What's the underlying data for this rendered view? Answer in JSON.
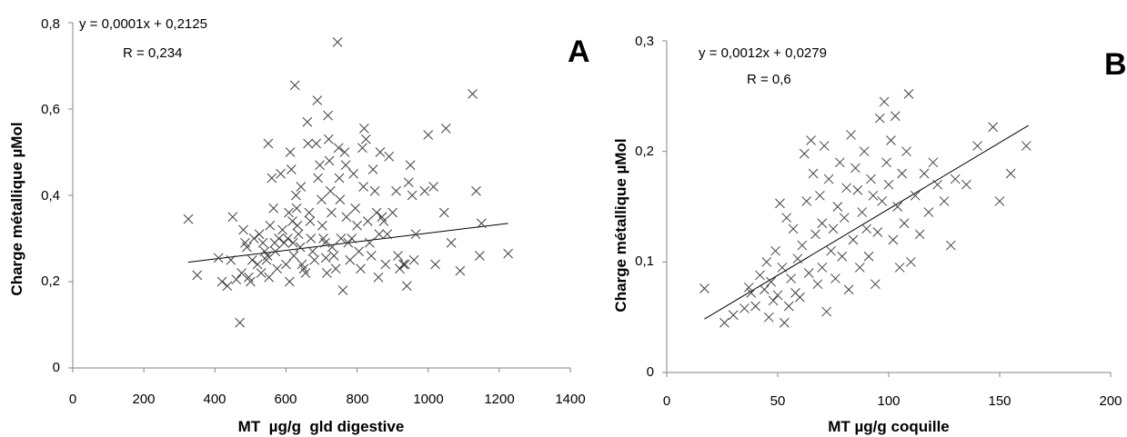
{
  "chart_data": [
    {
      "type": "scatter",
      "panel_label": "A",
      "xlabel": "MT  µg/g  gld digestive",
      "ylabel": "Charge métallique µMol",
      "xlim": [
        0,
        1400
      ],
      "ylim": [
        0,
        0.8
      ],
      "x_ticks": [
        0,
        200,
        400,
        600,
        800,
        1000,
        1200,
        1400
      ],
      "x_tick_labels": [
        "0",
        "200",
        "400",
        "600",
        "800",
        "1000",
        "1200",
        "1400"
      ],
      "y_ticks": [
        0,
        0.2,
        0.4,
        0.6,
        0.8
      ],
      "y_tick_labels": [
        "0",
        "0,2",
        "0,4",
        "0,6",
        "0,8"
      ],
      "grid": false,
      "marker": "x",
      "trendline": {
        "slope": 0.0001,
        "intercept": 0.2125,
        "x_range": [
          325,
          1225
        ]
      },
      "annotations": [
        "y = 0,0001x + 0,2125",
        "R = 0,234"
      ],
      "points": [
        [
          325,
          0.345
        ],
        [
          350,
          0.215
        ],
        [
          410,
          0.255
        ],
        [
          420,
          0.2
        ],
        [
          435,
          0.19
        ],
        [
          445,
          0.25
        ],
        [
          450,
          0.35
        ],
        [
          460,
          0.205
        ],
        [
          470,
          0.105
        ],
        [
          475,
          0.22
        ],
        [
          480,
          0.32
        ],
        [
          485,
          0.29
        ],
        [
          490,
          0.28
        ],
        [
          495,
          0.21
        ],
        [
          500,
          0.2
        ],
        [
          505,
          0.25
        ],
        [
          510,
          0.3
        ],
        [
          520,
          0.24
        ],
        [
          525,
          0.31
        ],
        [
          530,
          0.22
        ],
        [
          535,
          0.29
        ],
        [
          540,
          0.27
        ],
        [
          545,
          0.25
        ],
        [
          548,
          0.26
        ],
        [
          550,
          0.52
        ],
        [
          552,
          0.21
        ],
        [
          555,
          0.33
        ],
        [
          560,
          0.44
        ],
        [
          565,
          0.37
        ],
        [
          568,
          0.29
        ],
        [
          570,
          0.27
        ],
        [
          575,
          0.23
        ],
        [
          580,
          0.3
        ],
        [
          585,
          0.45
        ],
        [
          590,
          0.32
        ],
        [
          595,
          0.29
        ],
        [
          600,
          0.24
        ],
        [
          605,
          0.3
        ],
        [
          608,
          0.36
        ],
        [
          610,
          0.2
        ],
        [
          612,
          0.5
        ],
        [
          615,
          0.46
        ],
        [
          618,
          0.34
        ],
        [
          620,
          0.29
        ],
        [
          622,
          0.26
        ],
        [
          625,
          0.655
        ],
        [
          628,
          0.4
        ],
        [
          630,
          0.37
        ],
        [
          632,
          0.33
        ],
        [
          635,
          0.31
        ],
        [
          640,
          0.28
        ],
        [
          642,
          0.42
        ],
        [
          645,
          0.24
        ],
        [
          650,
          0.23
        ],
        [
          655,
          0.22
        ],
        [
          660,
          0.57
        ],
        [
          662,
          0.52
        ],
        [
          665,
          0.36
        ],
        [
          668,
          0.34
        ],
        [
          670,
          0.3
        ],
        [
          675,
          0.27
        ],
        [
          680,
          0.25
        ],
        [
          685,
          0.52
        ],
        [
          688,
          0.62
        ],
        [
          690,
          0.44
        ],
        [
          695,
          0.47
        ],
        [
          700,
          0.39
        ],
        [
          702,
          0.33
        ],
        [
          705,
          0.3
        ],
        [
          710,
          0.29
        ],
        [
          712,
          0.255
        ],
        [
          715,
          0.22
        ],
        [
          718,
          0.585
        ],
        [
          720,
          0.53
        ],
        [
          722,
          0.48
        ],
        [
          725,
          0.41
        ],
        [
          728,
          0.36
        ],
        [
          730,
          0.28
        ],
        [
          735,
          0.26
        ],
        [
          740,
          0.23
        ],
        [
          745,
          0.755
        ],
        [
          748,
          0.51
        ],
        [
          750,
          0.44
        ],
        [
          752,
          0.39
        ],
        [
          755,
          0.3
        ],
        [
          760,
          0.18
        ],
        [
          765,
          0.5
        ],
        [
          768,
          0.47
        ],
        [
          770,
          0.35
        ],
        [
          775,
          0.29
        ],
        [
          780,
          0.25
        ],
        [
          785,
          0.3
        ],
        [
          790,
          0.45
        ],
        [
          795,
          0.37
        ],
        [
          800,
          0.33
        ],
        [
          805,
          0.27
        ],
        [
          810,
          0.23
        ],
        [
          815,
          0.51
        ],
        [
          818,
          0.42
        ],
        [
          820,
          0.555
        ],
        [
          825,
          0.53
        ],
        [
          830,
          0.34
        ],
        [
          835,
          0.29
        ],
        [
          840,
          0.26
        ],
        [
          845,
          0.46
        ],
        [
          850,
          0.41
        ],
        [
          855,
          0.36
        ],
        [
          860,
          0.21
        ],
        [
          862,
          0.31
        ],
        [
          865,
          0.5
        ],
        [
          870,
          0.35
        ],
        [
          875,
          0.34
        ],
        [
          880,
          0.24
        ],
        [
          885,
          0.31
        ],
        [
          890,
          0.49
        ],
        [
          900,
          0.36
        ],
        [
          910,
          0.41
        ],
        [
          915,
          0.26
        ],
        [
          920,
          0.23
        ],
        [
          930,
          0.24
        ],
        [
          935,
          0.24
        ],
        [
          940,
          0.19
        ],
        [
          945,
          0.43
        ],
        [
          950,
          0.47
        ],
        [
          955,
          0.4
        ],
        [
          960,
          0.25
        ],
        [
          965,
          0.31
        ],
        [
          990,
          0.41
        ],
        [
          1000,
          0.54
        ],
        [
          1015,
          0.42
        ],
        [
          1020,
          0.24
        ],
        [
          1045,
          0.36
        ],
        [
          1050,
          0.555
        ],
        [
          1065,
          0.29
        ],
        [
          1090,
          0.225
        ],
        [
          1125,
          0.635
        ],
        [
          1135,
          0.41
        ],
        [
          1145,
          0.26
        ],
        [
          1150,
          0.335
        ],
        [
          1225,
          0.265
        ]
      ]
    },
    {
      "type": "scatter",
      "panel_label": "B",
      "xlabel": "MT µg/g coquille",
      "ylabel": "Charge métallique µMol",
      "xlim": [
        0,
        200
      ],
      "ylim": [
        0,
        0.3
      ],
      "x_ticks": [
        0,
        50,
        100,
        150,
        200
      ],
      "x_tick_labels": [
        "0",
        "50",
        "100",
        "150",
        "200"
      ],
      "y_ticks": [
        0,
        0.1,
        0.2,
        0.3
      ],
      "y_tick_labels": [
        "0",
        "0,1",
        "0,2",
        "0,3"
      ],
      "grid": false,
      "marker": "x",
      "trendline": {
        "slope": 0.0012,
        "intercept": 0.0279,
        "x_range": [
          17,
          163
        ]
      },
      "annotations": [
        "y = 0,0012x + 0,0279",
        "R = 0,6"
      ],
      "points": [
        [
          17,
          0.076
        ],
        [
          26,
          0.045
        ],
        [
          30,
          0.052
        ],
        [
          35,
          0.058
        ],
        [
          37,
          0.077
        ],
        [
          38,
          0.072
        ],
        [
          40,
          0.06
        ],
        [
          42,
          0.088
        ],
        [
          44,
          0.075
        ],
        [
          45,
          0.1
        ],
        [
          46,
          0.05
        ],
        [
          47,
          0.082
        ],
        [
          48,
          0.065
        ],
        [
          49,
          0.11
        ],
        [
          50,
          0.07
        ],
        [
          51,
          0.153
        ],
        [
          52,
          0.095
        ],
        [
          53,
          0.045
        ],
        [
          54,
          0.14
        ],
        [
          55,
          0.06
        ],
        [
          56,
          0.085
        ],
        [
          57,
          0.13
        ],
        [
          58,
          0.072
        ],
        [
          59,
          0.103
        ],
        [
          60,
          0.068
        ],
        [
          61,
          0.115
        ],
        [
          62,
          0.198
        ],
        [
          63,
          0.155
        ],
        [
          64,
          0.09
        ],
        [
          65,
          0.21
        ],
        [
          66,
          0.18
        ],
        [
          67,
          0.125
        ],
        [
          68,
          0.08
        ],
        [
          69,
          0.16
        ],
        [
          70,
          0.095
        ],
        [
          70,
          0.135
        ],
        [
          71,
          0.205
        ],
        [
          72,
          0.055
        ],
        [
          73,
          0.175
        ],
        [
          74,
          0.11
        ],
        [
          75,
          0.13
        ],
        [
          76,
          0.085
        ],
        [
          77,
          0.15
        ],
        [
          78,
          0.19
        ],
        [
          79,
          0.105
        ],
        [
          80,
          0.14
        ],
        [
          81,
          0.167
        ],
        [
          82,
          0.075
        ],
        [
          83,
          0.215
        ],
        [
          84,
          0.12
        ],
        [
          85,
          0.185
        ],
        [
          86,
          0.165
        ],
        [
          87,
          0.095
        ],
        [
          88,
          0.145
        ],
        [
          89,
          0.2
        ],
        [
          90,
          0.13
        ],
        [
          91,
          0.105
        ],
        [
          92,
          0.175
        ],
        [
          93,
          0.16
        ],
        [
          94,
          0.08
        ],
        [
          95,
          0.127
        ],
        [
          96,
          0.23
        ],
        [
          97,
          0.155
        ],
        [
          98,
          0.245
        ],
        [
          99,
          0.19
        ],
        [
          100,
          0.17
        ],
        [
          101,
          0.21
        ],
        [
          102,
          0.12
        ],
        [
          103,
          0.232
        ],
        [
          104,
          0.15
        ],
        [
          105,
          0.095
        ],
        [
          106,
          0.18
        ],
        [
          107,
          0.135
        ],
        [
          108,
          0.2
        ],
        [
          109,
          0.252
        ],
        [
          110,
          0.1
        ],
        [
          112,
          0.16
        ],
        [
          114,
          0.125
        ],
        [
          116,
          0.18
        ],
        [
          118,
          0.145
        ],
        [
          120,
          0.19
        ],
        [
          122,
          0.17
        ],
        [
          125,
          0.155
        ],
        [
          128,
          0.115
        ],
        [
          130,
          0.175
        ],
        [
          135,
          0.17
        ],
        [
          140,
          0.205
        ],
        [
          147,
          0.222
        ],
        [
          150,
          0.155
        ],
        [
          155,
          0.18
        ],
        [
          162,
          0.205
        ]
      ]
    }
  ]
}
